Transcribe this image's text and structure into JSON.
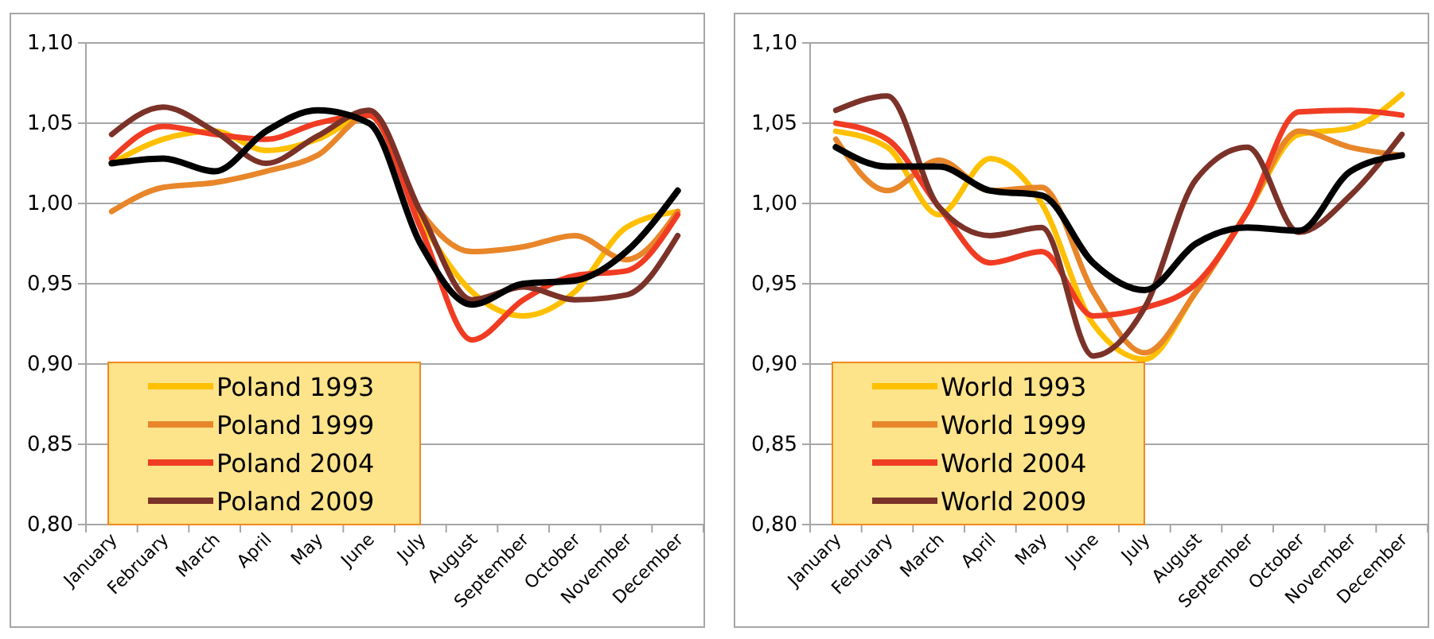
{
  "chart_data": [
    {
      "type": "line",
      "categories": [
        "January",
        "February",
        "March",
        "April",
        "May",
        "June",
        "July",
        "August",
        "September",
        "October",
        "November",
        "December"
      ],
      "series": [
        {
          "name": "Poland 1993",
          "color": "#ffc000",
          "values": [
            1.025,
            1.04,
            1.045,
            1.033,
            1.04,
            1.055,
            0.99,
            0.945,
            0.93,
            0.945,
            0.985,
            0.995
          ]
        },
        {
          "name": "Poland 1999",
          "color": "#e8862a",
          "values": [
            0.995,
            1.01,
            1.013,
            1.02,
            1.03,
            1.055,
            0.995,
            0.97,
            0.973,
            0.98,
            0.965,
            0.995
          ]
        },
        {
          "name": "Poland 2004",
          "color": "#f03c23",
          "values": [
            1.028,
            1.048,
            1.043,
            1.04,
            1.05,
            1.055,
            0.985,
            0.915,
            0.94,
            0.955,
            0.958,
            0.993
          ]
        },
        {
          "name": "Poland 2009",
          "color": "#7b3228",
          "values": [
            1.043,
            1.06,
            1.045,
            1.025,
            1.042,
            1.058,
            0.995,
            0.94,
            0.948,
            0.94,
            0.943,
            0.98
          ]
        },
        {
          "color": "#000000",
          "values": [
            1.025,
            1.028,
            1.02,
            1.045,
            1.058,
            1.05,
            0.975,
            0.937,
            0.95,
            0.952,
            0.97,
            1.008
          ]
        }
      ],
      "ylim": [
        0.8,
        1.1
      ],
      "yticks": [
        {
          "value": 0.8,
          "label": "0,80"
        },
        {
          "value": 0.85,
          "label": "0,85"
        },
        {
          "value": 0.9,
          "label": "0,90"
        },
        {
          "value": 0.95,
          "label": "0,95"
        },
        {
          "value": 1.0,
          "label": "1,00"
        },
        {
          "value": 1.05,
          "label": "1,05"
        },
        {
          "value": 1.1,
          "label": "1,10"
        }
      ],
      "grid": "y",
      "legend": "bottom left",
      "marker": "none",
      "line_style": "solid"
    },
    {
      "type": "line",
      "categories": [
        "January",
        "February",
        "March",
        "April",
        "May",
        "June",
        "July",
        "August",
        "September",
        "October",
        "November",
        "December"
      ],
      "series": [
        {
          "name": "World 1993",
          "color": "#ffc000",
          "values": [
            1.045,
            1.035,
            0.993,
            1.028,
            1.0,
            0.925,
            0.903,
            0.945,
            0.995,
            1.043,
            1.047,
            1.068
          ]
        },
        {
          "name": "World 1999",
          "color": "#e8862a",
          "values": [
            1.04,
            1.008,
            1.027,
            1.008,
            1.01,
            0.945,
            0.907,
            0.945,
            0.995,
            1.045,
            1.035,
            1.03
          ]
        },
        {
          "name": "World 2004",
          "color": "#f03c23",
          "values": [
            1.05,
            1.04,
            0.998,
            0.963,
            0.97,
            0.93,
            0.935,
            0.95,
            0.995,
            1.057,
            1.058,
            1.055
          ]
        },
        {
          "name": "World 2009",
          "color": "#7b3228",
          "values": [
            1.058,
            1.067,
            0.998,
            0.98,
            0.985,
            0.905,
            0.935,
            1.015,
            1.035,
            0.982,
            1.005,
            1.043
          ]
        },
        {
          "color": "#000000",
          "values": [
            1.035,
            1.023,
            1.023,
            1.008,
            1.005,
            0.963,
            0.946,
            0.975,
            0.985,
            0.983,
            1.02,
            1.03
          ]
        }
      ],
      "ylim": [
        0.8,
        1.1
      ],
      "yticks": [
        {
          "value": 0.8,
          "label": "0,80"
        },
        {
          "value": 0.85,
          "label": "0,85"
        },
        {
          "value": 0.9,
          "label": "0,90"
        },
        {
          "value": 0.95,
          "label": "0,95"
        },
        {
          "value": 1.0,
          "label": "1,00"
        },
        {
          "value": 1.05,
          "label": "1,05"
        },
        {
          "value": 1.1,
          "label": "1,10"
        }
      ],
      "grid": "y",
      "legend": "bottom left",
      "marker": "none",
      "line_style": "solid"
    }
  ]
}
